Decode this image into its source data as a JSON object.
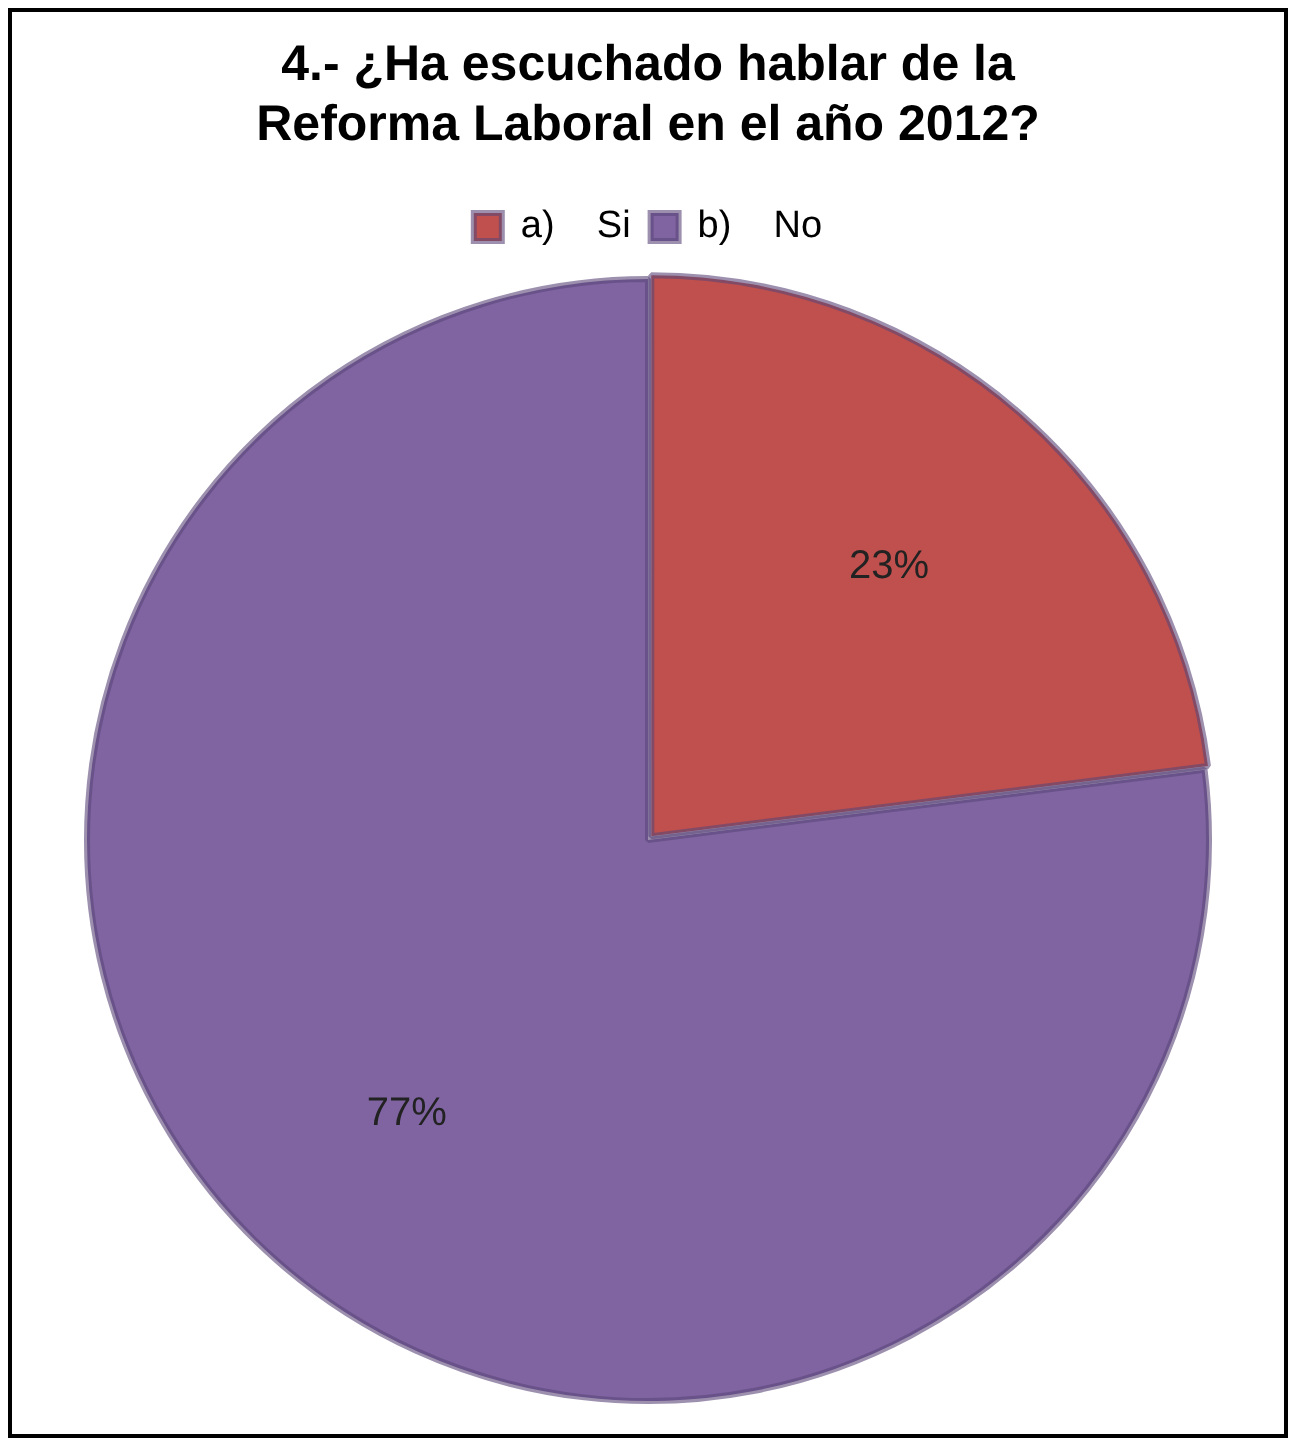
{
  "chart_data": {
    "type": "pie",
    "title": "4.- ¿Ha escuchado hablar de la Reforma Laboral en el año 2012?",
    "categories": [
      "a)    Si",
      "b)    No"
    ],
    "values": [
      23,
      77
    ],
    "colors": [
      "#c0504d",
      "#8064a2"
    ],
    "value_labels": [
      "23%",
      "77%"
    ],
    "legend": "top"
  }
}
